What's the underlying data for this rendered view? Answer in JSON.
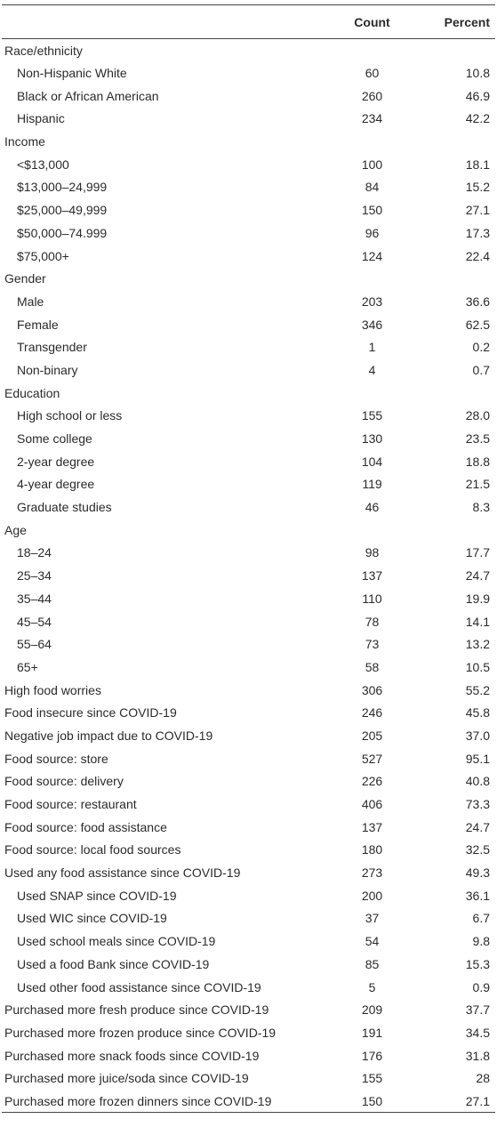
{
  "header": {
    "label": "",
    "count": "Count",
    "percent": "Percent"
  },
  "rows": [
    {
      "label": "Race/ethnicity",
      "count": "",
      "percent": "",
      "indent": false
    },
    {
      "label": "Non-Hispanic White",
      "count": "60",
      "percent": "10.8",
      "indent": true
    },
    {
      "label": "Black or African American",
      "count": "260",
      "percent": "46.9",
      "indent": true
    },
    {
      "label": "Hispanic",
      "count": "234",
      "percent": "42.2",
      "indent": true
    },
    {
      "label": "Income",
      "count": "",
      "percent": "",
      "indent": false
    },
    {
      "label": "<$13,000",
      "count": "100",
      "percent": "18.1",
      "indent": true
    },
    {
      "label": "$13,000–24,999",
      "count": "84",
      "percent": "15.2",
      "indent": true
    },
    {
      "label": "$25,000–49,999",
      "count": "150",
      "percent": "27.1",
      "indent": true
    },
    {
      "label": "$50,000–74.999",
      "count": "96",
      "percent": "17.3",
      "indent": true
    },
    {
      "label": "$75,000+",
      "count": "124",
      "percent": "22.4",
      "indent": true
    },
    {
      "label": "Gender",
      "count": "",
      "percent": "",
      "indent": false
    },
    {
      "label": "Male",
      "count": "203",
      "percent": "36.6",
      "indent": true
    },
    {
      "label": "Female",
      "count": "346",
      "percent": "62.5",
      "indent": true
    },
    {
      "label": "Transgender",
      "count": "1",
      "percent": "0.2",
      "indent": true
    },
    {
      "label": "Non-binary",
      "count": "4",
      "percent": "0.7",
      "indent": true
    },
    {
      "label": "Education",
      "count": "",
      "percent": "",
      "indent": false
    },
    {
      "label": "High school or less",
      "count": "155",
      "percent": "28.0",
      "indent": true
    },
    {
      "label": "Some college",
      "count": "130",
      "percent": "23.5",
      "indent": true
    },
    {
      "label": "2-year degree",
      "count": "104",
      "percent": "18.8",
      "indent": true
    },
    {
      "label": "4-year degree",
      "count": "119",
      "percent": "21.5",
      "indent": true
    },
    {
      "label": "Graduate studies",
      "count": "46",
      "percent": "8.3",
      "indent": true
    },
    {
      "label": "Age",
      "count": "",
      "percent": "",
      "indent": false
    },
    {
      "label": "18–24",
      "count": "98",
      "percent": "17.7",
      "indent": true
    },
    {
      "label": "25–34",
      "count": "137",
      "percent": "24.7",
      "indent": true
    },
    {
      "label": "35–44",
      "count": "110",
      "percent": "19.9",
      "indent": true
    },
    {
      "label": "45–54",
      "count": "78",
      "percent": "14.1",
      "indent": true
    },
    {
      "label": "55–64",
      "count": "73",
      "percent": "13.2",
      "indent": true
    },
    {
      "label": "65+",
      "count": "58",
      "percent": "10.5",
      "indent": true
    },
    {
      "label": "High food worries",
      "count": "306",
      "percent": "55.2",
      "indent": false
    },
    {
      "label": "Food insecure since COVID-19",
      "count": "246",
      "percent": "45.8",
      "indent": false
    },
    {
      "label": "Negative job impact due to COVID-19",
      "count": "205",
      "percent": "37.0",
      "indent": false
    },
    {
      "label": "Food source: store",
      "count": "527",
      "percent": "95.1",
      "indent": false
    },
    {
      "label": "Food source: delivery",
      "count": "226",
      "percent": "40.8",
      "indent": false
    },
    {
      "label": "Food source: restaurant",
      "count": "406",
      "percent": "73.3",
      "indent": false
    },
    {
      "label": "Food source: food assistance",
      "count": "137",
      "percent": "24.7",
      "indent": false
    },
    {
      "label": "Food source: local food sources",
      "count": "180",
      "percent": "32.5",
      "indent": false
    },
    {
      "label": "Used any food assistance since COVID-19",
      "count": "273",
      "percent": "49.3",
      "indent": false
    },
    {
      "label": "Used SNAP since COVID-19",
      "count": "200",
      "percent": "36.1",
      "indent": true
    },
    {
      "label": "Used WIC since COVID-19",
      "count": "37",
      "percent": "6.7",
      "indent": true
    },
    {
      "label": "Used school meals since COVID-19",
      "count": "54",
      "percent": "9.8",
      "indent": true
    },
    {
      "label": "Used a food Bank since COVID-19",
      "count": "85",
      "percent": "15.3",
      "indent": true
    },
    {
      "label": "Used other food assistance since COVID-19",
      "count": "5",
      "percent": "0.9",
      "indent": true
    },
    {
      "label": "Purchased more fresh produce since COVID-19",
      "count": "209",
      "percent": "37.7",
      "indent": false
    },
    {
      "label": "Purchased more frozen produce since COVID-19",
      "count": "191",
      "percent": "34.5",
      "indent": false
    },
    {
      "label": "Purchased more snack foods since COVID-19",
      "count": "176",
      "percent": "31.8",
      "indent": false
    },
    {
      "label": "Purchased more juice/soda since COVID-19",
      "count": "155",
      "percent": "28",
      "indent": false
    },
    {
      "label": "Purchased more frozen dinners since COVID-19",
      "count": "150",
      "percent": "27.1",
      "indent": false
    }
  ]
}
